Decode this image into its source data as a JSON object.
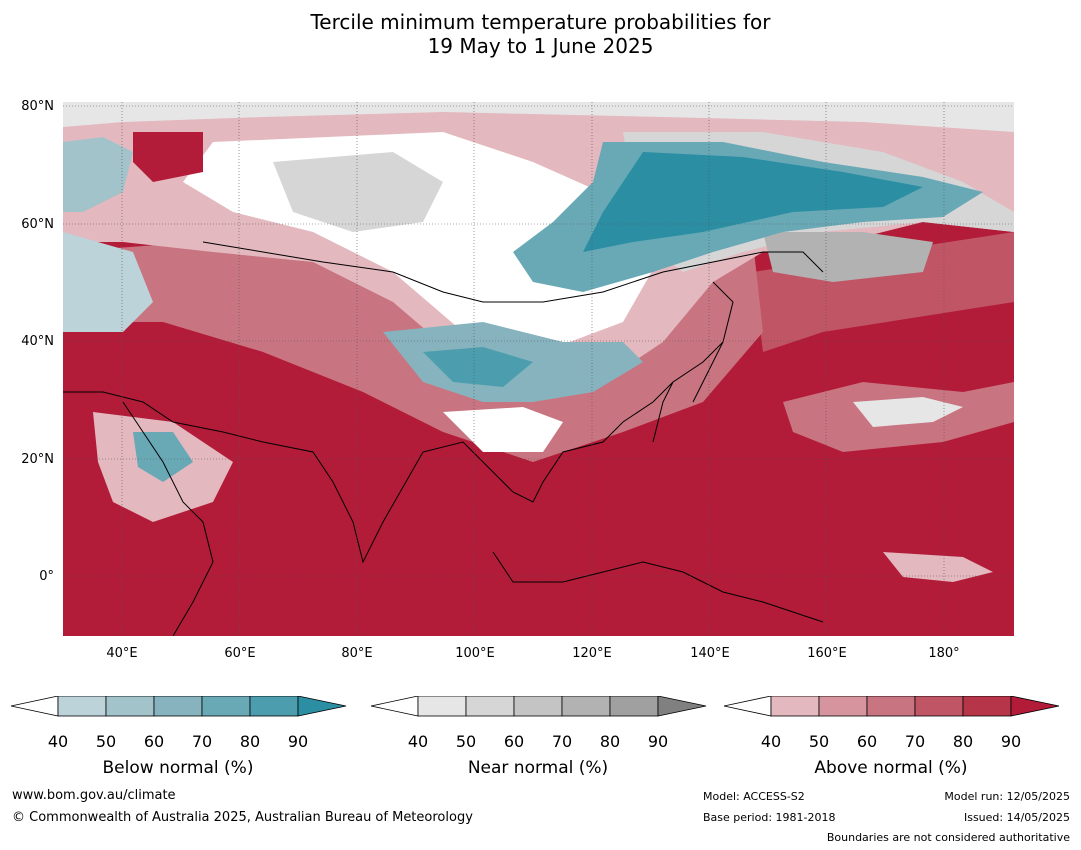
{
  "title": {
    "line1": "Tercile minimum temperature probabilities for",
    "line2": "19 May to 1 June 2025"
  },
  "axes": {
    "lat_labels": [
      "80°N",
      "60°N",
      "40°N",
      "20°N",
      "0°"
    ],
    "lon_labels": [
      "40°E",
      "60°E",
      "80°E",
      "100°E",
      "120°E",
      "140°E",
      "160°E",
      "180°"
    ],
    "lon_range": [
      30,
      192
    ],
    "lat_range": [
      -10,
      81
    ]
  },
  "legends": {
    "below": {
      "title": "Below normal (%)",
      "ticks": [
        "40",
        "50",
        "60",
        "70",
        "80",
        "90"
      ],
      "colors": [
        "#ffffff",
        "#bcd3da",
        "#a3c3cb",
        "#86b3be",
        "#69a9b6",
        "#4c9eae",
        "#2b8ea3"
      ]
    },
    "near": {
      "title": "Near normal (%)",
      "ticks": [
        "40",
        "50",
        "60",
        "70",
        "80",
        "90"
      ],
      "colors": [
        "#ffffff",
        "#e6e6e6",
        "#d6d6d6",
        "#c4c4c4",
        "#b2b2b2",
        "#a0a0a0",
        "#808080"
      ]
    },
    "above": {
      "title": "Above normal (%)",
      "ticks": [
        "40",
        "50",
        "60",
        "70",
        "80",
        "90"
      ],
      "colors": [
        "#ffffff",
        "#e3b8bf",
        "#d6959e",
        "#c97481",
        "#c05565",
        "#b73549",
        "#b21c38"
      ]
    }
  },
  "footer": {
    "website": "www.bom.gov.au/climate",
    "copyright": "© Commonwealth of Australia 2025, Australian Bureau of Meteorology",
    "model": "Model: ACCESS-S2",
    "base_period": "Base period: 1981-2018",
    "model_run": "Model run: 12/05/2025",
    "issued": "Issued: 14/05/2025",
    "disclaimer": "Boundaries are not considered authoritative"
  }
}
